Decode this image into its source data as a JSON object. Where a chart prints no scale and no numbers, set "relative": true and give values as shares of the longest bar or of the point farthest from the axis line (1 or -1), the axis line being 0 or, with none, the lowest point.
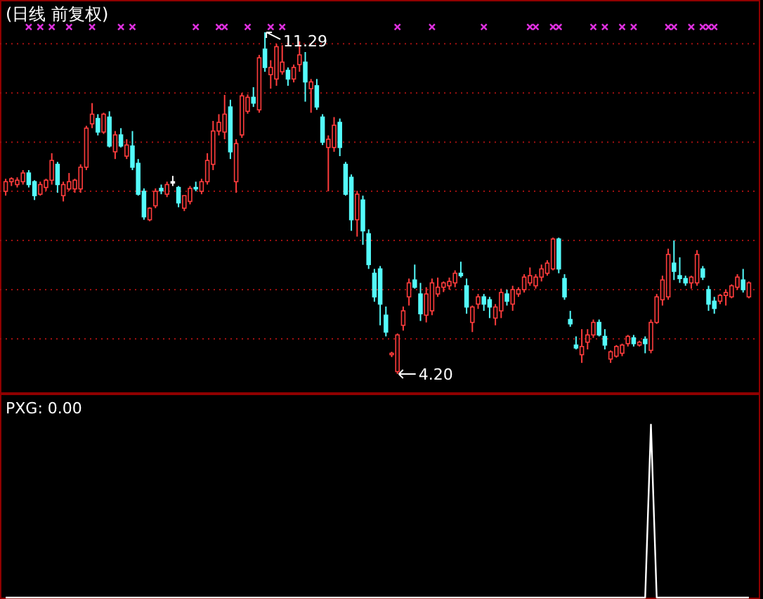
{
  "chart_data": [
    {
      "type": "candlestick",
      "title": "(日线 前复权)",
      "categories": [
        null,
        null,
        null,
        null,
        null,
        null,
        null,
        null,
        null,
        null,
        null,
        null,
        null,
        null,
        null,
        null,
        null,
        null,
        null,
        null,
        null,
        null,
        null,
        null,
        null,
        null,
        null,
        null,
        null,
        null,
        null,
        null,
        null,
        null,
        null,
        null,
        null,
        null,
        null,
        null,
        null,
        null,
        null,
        null,
        null,
        null,
        null,
        null,
        null,
        null,
        null,
        null,
        null,
        null,
        null,
        null,
        null,
        null,
        null,
        null,
        null,
        null,
        null,
        null,
        null,
        null,
        null,
        null,
        null,
        null,
        null,
        null,
        null,
        null,
        null,
        null,
        null,
        null,
        null,
        null,
        null,
        null,
        null,
        null,
        null,
        null,
        null,
        null,
        null,
        null,
        null,
        null,
        null,
        null,
        null,
        null,
        null,
        null,
        null,
        null,
        null,
        null,
        null,
        null,
        null,
        null,
        null,
        null,
        null,
        null,
        null,
        null,
        null,
        null,
        null,
        null,
        null,
        null,
        null,
        null,
        null,
        null,
        null,
        null,
        null,
        null,
        null,
        null,
        null,
        null
      ],
      "ohlc": [
        [
          7.99,
          8.25,
          7.9,
          8.19
        ],
        [
          8.19,
          8.28,
          8.1,
          8.25
        ],
        [
          8.13,
          8.28,
          8.07,
          8.22
        ],
        [
          8.19,
          8.43,
          8.13,
          8.37
        ],
        [
          8.37,
          8.43,
          8.07,
          8.13
        ],
        [
          8.19,
          8.22,
          7.81,
          7.9
        ],
        [
          7.93,
          8.19,
          7.9,
          8.13
        ],
        [
          8.07,
          8.25,
          8.0,
          8.22
        ],
        [
          8.22,
          8.78,
          8.13,
          8.63
        ],
        [
          8.55,
          8.6,
          7.96,
          8.13
        ],
        [
          7.9,
          8.19,
          7.78,
          8.13
        ],
        [
          8.04,
          8.37,
          8.0,
          8.19
        ],
        [
          8.04,
          8.25,
          7.96,
          8.22
        ],
        [
          8.04,
          8.55,
          7.96,
          8.49
        ],
        [
          8.49,
          9.35,
          8.43,
          9.3
        ],
        [
          9.39,
          9.82,
          9.3,
          9.59
        ],
        [
          9.5,
          9.59,
          9.15,
          9.22
        ],
        [
          9.22,
          9.62,
          9.18,
          9.59
        ],
        [
          9.53,
          9.65,
          8.9,
          8.93
        ],
        [
          8.81,
          9.24,
          8.66,
          9.16
        ],
        [
          9.16,
          9.3,
          8.9,
          8.93
        ],
        [
          8.72,
          9.07,
          8.66,
          8.95
        ],
        [
          8.93,
          9.24,
          8.43,
          8.49
        ],
        [
          8.57,
          8.66,
          7.9,
          7.93
        ],
        [
          7.99,
          8.05,
          7.4,
          7.46
        ],
        [
          7.4,
          7.66,
          7.37,
          7.64
        ],
        [
          7.69,
          8.05,
          7.64,
          7.99
        ],
        [
          8.05,
          8.13,
          7.93,
          8.0
        ],
        [
          7.93,
          8.19,
          7.87,
          8.13
        ],
        [
          8.19,
          8.31,
          8.1,
          8.19
        ],
        [
          8.07,
          8.1,
          7.66,
          7.75
        ],
        [
          7.64,
          7.9,
          7.58,
          7.9
        ],
        [
          7.78,
          8.1,
          7.72,
          8.05
        ],
        [
          8.07,
          8.19,
          7.99,
          8.05
        ],
        [
          7.99,
          8.25,
          7.93,
          8.19
        ],
        [
          8.19,
          8.78,
          8.13,
          8.63
        ],
        [
          8.55,
          9.45,
          8.43,
          9.24
        ],
        [
          9.24,
          9.59,
          9.15,
          9.42
        ],
        [
          9.22,
          9.99,
          9.07,
          9.59
        ],
        [
          9.74,
          9.89,
          8.66,
          8.81
        ],
        [
          8.19,
          9.07,
          7.96,
          8.98
        ],
        [
          9.16,
          10.03,
          9.1,
          9.97
        ],
        [
          9.65,
          10.0,
          9.6,
          9.94
        ],
        [
          9.94,
          10.15,
          9.74,
          9.82
        ],
        [
          9.68,
          10.82,
          9.62,
          10.76
        ],
        [
          10.94,
          11.29,
          10.47,
          10.56
        ],
        [
          10.41,
          10.71,
          10.12,
          10.56
        ],
        [
          10.32,
          11.05,
          10.18,
          10.99
        ],
        [
          10.47,
          11.02,
          10.41,
          10.67
        ],
        [
          10.5,
          10.56,
          10.18,
          10.32
        ],
        [
          10.32,
          10.62,
          10.25,
          10.56
        ],
        [
          10.62,
          11.1,
          10.47,
          10.82
        ],
        [
          10.67,
          10.88,
          9.85,
          10.26
        ],
        [
          10.12,
          10.32,
          9.62,
          10.26
        ],
        [
          10.18,
          10.32,
          9.68,
          9.74
        ],
        [
          9.53,
          9.59,
          8.95,
          9.01
        ],
        [
          8.9,
          9.15,
          7.99,
          9.07
        ],
        [
          8.9,
          9.53,
          8.81,
          9.36
        ],
        [
          9.42,
          9.5,
          8.72,
          8.9
        ],
        [
          8.55,
          8.6,
          7.9,
          7.93
        ],
        [
          8.28,
          8.34,
          7.17,
          7.4
        ],
        [
          7.4,
          8.0,
          7.05,
          7.93
        ],
        [
          7.81,
          7.9,
          6.88,
          7.17
        ],
        [
          7.11,
          7.2,
          6.38,
          6.47
        ],
        [
          6.29,
          6.38,
          5.7,
          5.8
        ],
        [
          6.38,
          6.44,
          5.21,
          5.65
        ],
        [
          5.42,
          5.6,
          4.98,
          5.07
        ],
        [
          4.6,
          4.66,
          4.55,
          4.63
        ],
        [
          4.25,
          5.04,
          4.2,
          5.01
        ],
        [
          5.21,
          5.6,
          5.1,
          5.51
        ],
        [
          5.8,
          6.18,
          5.62,
          6.09
        ],
        [
          6.15,
          6.47,
          5.97,
          6.0
        ],
        [
          5.86,
          6.09,
          5.3,
          5.45
        ],
        [
          5.42,
          6.0,
          5.27,
          5.86
        ],
        [
          5.51,
          6.18,
          5.42,
          6.09
        ],
        [
          5.86,
          6.2,
          5.8,
          6.0
        ],
        [
          6.0,
          6.12,
          5.9,
          6.09
        ],
        [
          6.03,
          6.2,
          5.95,
          6.12
        ],
        [
          6.09,
          6.35,
          6.0,
          6.29
        ],
        [
          6.29,
          6.53,
          6.2,
          6.24
        ],
        [
          6.03,
          6.18,
          5.45,
          5.59
        ],
        [
          5.27,
          5.62,
          5.07,
          5.59
        ],
        [
          5.65,
          5.86,
          5.55,
          5.8
        ],
        [
          5.8,
          5.86,
          5.51,
          5.65
        ],
        [
          5.74,
          5.8,
          5.36,
          5.59
        ],
        [
          5.36,
          5.65,
          5.21,
          5.59
        ],
        [
          5.51,
          5.97,
          5.36,
          5.89
        ],
        [
          5.86,
          5.95,
          5.62,
          5.71
        ],
        [
          5.65,
          6.03,
          5.51,
          5.95
        ],
        [
          5.86,
          6.0,
          5.8,
          5.95
        ],
        [
          5.95,
          6.27,
          5.89,
          6.21
        ],
        [
          6.09,
          6.41,
          6.03,
          6.24
        ],
        [
          6.03,
          6.27,
          5.97,
          6.21
        ],
        [
          6.21,
          6.47,
          6.12,
          6.38
        ],
        [
          6.29,
          6.56,
          6.24,
          6.5
        ],
        [
          6.38,
          7.03,
          6.35,
          7.0
        ],
        [
          7.0,
          7.03,
          6.29,
          6.38
        ],
        [
          6.18,
          6.27,
          5.74,
          5.8
        ],
        [
          5.33,
          5.51,
          5.18,
          5.24
        ],
        [
          4.8,
          4.98,
          4.71,
          4.74
        ],
        [
          4.6,
          5.13,
          4.43,
          4.77
        ],
        [
          4.86,
          5.13,
          4.71,
          5.01
        ],
        [
          5.01,
          5.33,
          4.95,
          5.27
        ],
        [
          5.27,
          5.33,
          4.98,
          5.01
        ],
        [
          4.98,
          5.13,
          4.71,
          4.8
        ],
        [
          4.51,
          4.69,
          4.43,
          4.66
        ],
        [
          4.57,
          4.8,
          4.54,
          4.77
        ],
        [
          4.63,
          4.83,
          4.57,
          4.8
        ],
        [
          4.83,
          5.01,
          4.77,
          4.98
        ],
        [
          4.95,
          5.01,
          4.77,
          4.83
        ],
        [
          4.8,
          4.89,
          4.77,
          4.86
        ],
        [
          4.92,
          4.98,
          4.63,
          4.83
        ],
        [
          4.69,
          5.33,
          4.63,
          5.27
        ],
        [
          5.27,
          5.86,
          5.24,
          5.8
        ],
        [
          5.74,
          6.24,
          5.62,
          6.15
        ],
        [
          5.8,
          6.8,
          5.74,
          6.68
        ],
        [
          6.5,
          6.97,
          6.15,
          6.33
        ],
        [
          6.24,
          6.62,
          6.09,
          6.18
        ],
        [
          6.18,
          6.24,
          6.03,
          6.09
        ],
        [
          6.09,
          6.24,
          5.97,
          6.21
        ],
        [
          6.09,
          6.77,
          6.03,
          6.68
        ],
        [
          6.38,
          6.44,
          6.15,
          6.21
        ],
        [
          5.95,
          6.03,
          5.51,
          5.65
        ],
        [
          5.71,
          5.8,
          5.45,
          5.56
        ],
        [
          5.71,
          5.86,
          5.65,
          5.83
        ],
        [
          5.83,
          5.95,
          5.62,
          5.89
        ],
        [
          5.8,
          6.06,
          5.77,
          6.03
        ],
        [
          6.0,
          6.27,
          5.95,
          6.21
        ],
        [
          6.15,
          6.38,
          5.89,
          5.95
        ],
        [
          5.8,
          6.12,
          5.77,
          6.09
        ]
      ],
      "series": [
        {
          "type": "scatter",
          "color": "#e030e0",
          "marker": "cross",
          "values": [
            null,
            null,
            null,
            null,
            11.4,
            null,
            11.4,
            null,
            11.4,
            null,
            null,
            11.4,
            null,
            null,
            null,
            11.4,
            null,
            null,
            null,
            null,
            11.4,
            null,
            11.4,
            null,
            null,
            null,
            null,
            null,
            null,
            null,
            null,
            null,
            null,
            11.4,
            null,
            null,
            null,
            11.4,
            11.4,
            null,
            null,
            null,
            11.4,
            null,
            null,
            null,
            11.4,
            null,
            11.4,
            null,
            null,
            null,
            null,
            null,
            null,
            null,
            null,
            null,
            null,
            null,
            null,
            null,
            null,
            null,
            null,
            null,
            null,
            null,
            11.4,
            null,
            null,
            null,
            null,
            null,
            11.4,
            null,
            null,
            null,
            null,
            null,
            null,
            null,
            null,
            11.4,
            null,
            null,
            null,
            null,
            null,
            null,
            null,
            11.4,
            11.4,
            null,
            null,
            11.4,
            11.4,
            null,
            null,
            null,
            null,
            null,
            11.4,
            null,
            11.4,
            null,
            null,
            11.4,
            null,
            11.4,
            null,
            null,
            null,
            null,
            null,
            11.4,
            11.4,
            null,
            null,
            11.4,
            null,
            11.4,
            11.4,
            11.4,
            null,
            null,
            null,
            null,
            null,
            null
          ]
        }
      ],
      "ylim": [
        3.82,
        11.93
      ],
      "yticks": [
        {
          "value": 11.05,
          "label": null
        },
        {
          "value": 10.03,
          "label": null
        },
        {
          "value": 9.01,
          "label": null
        },
        {
          "value": 7.99,
          "label": null
        },
        {
          "value": 6.97,
          "label": null
        },
        {
          "value": 5.95,
          "label": null
        },
        {
          "value": 4.93,
          "label": null
        }
      ],
      "grid": "y",
      "annotations": [
        "11.29",
        "4.20"
      ]
    },
    {
      "type": "line",
      "title": "PXG: 0.00",
      "relative": true,
      "color": "#ffffff",
      "categories": [
        null,
        null,
        null,
        null,
        null,
        null,
        null,
        null,
        null,
        null,
        null,
        null,
        null,
        null,
        null,
        null,
        null,
        null,
        null,
        null,
        null,
        null,
        null,
        null,
        null,
        null,
        null,
        null,
        null,
        null,
        null,
        null,
        null,
        null,
        null,
        null,
        null,
        null,
        null,
        null,
        null,
        null,
        null,
        null,
        null,
        null,
        null,
        null,
        null,
        null,
        null,
        null,
        null,
        null,
        null,
        null,
        null,
        null,
        null,
        null,
        null,
        null,
        null,
        null,
        null,
        null,
        null,
        null,
        null,
        null,
        null,
        null,
        null,
        null,
        null,
        null,
        null,
        null,
        null,
        null,
        null,
        null,
        null,
        null,
        null,
        null,
        null,
        null,
        null,
        null,
        null,
        null,
        null,
        null,
        null,
        null,
        null,
        null,
        null,
        null,
        null,
        null,
        null,
        null,
        null,
        null,
        null,
        null,
        null,
        null,
        null,
        null,
        null,
        null,
        null,
        null,
        null,
        null,
        null,
        null,
        null,
        null,
        null,
        null,
        null,
        null,
        null,
        null,
        null,
        null
      ],
      "values": [
        0,
        0,
        0,
        0,
        0,
        0,
        0,
        0,
        0,
        0,
        0,
        0,
        0,
        0,
        0,
        0,
        0,
        0,
        0,
        0,
        0,
        0,
        0,
        0,
        0,
        0,
        0,
        0,
        0,
        0,
        0,
        0,
        0,
        0,
        0,
        0,
        0,
        0,
        0,
        0,
        0,
        0,
        0,
        0,
        0,
        0,
        0,
        0,
        0,
        0,
        0,
        0,
        0,
        0,
        0,
        0,
        0,
        0,
        0,
        0,
        0,
        0,
        0,
        0,
        0,
        0,
        0,
        0,
        0,
        0,
        0,
        0,
        0,
        0,
        0,
        0,
        0,
        0,
        0,
        0,
        0,
        0,
        0,
        0,
        0,
        0,
        0,
        0,
        0,
        0,
        0,
        0,
        0,
        0,
        0,
        0,
        0,
        0,
        0,
        0,
        0,
        0,
        0,
        0,
        0,
        0,
        0,
        0,
        0,
        0,
        0,
        0,
        1,
        0,
        0,
        0,
        0,
        0,
        0,
        0,
        0,
        0,
        0,
        0,
        0,
        0,
        0,
        0,
        0,
        0
      ]
    }
  ]
}
